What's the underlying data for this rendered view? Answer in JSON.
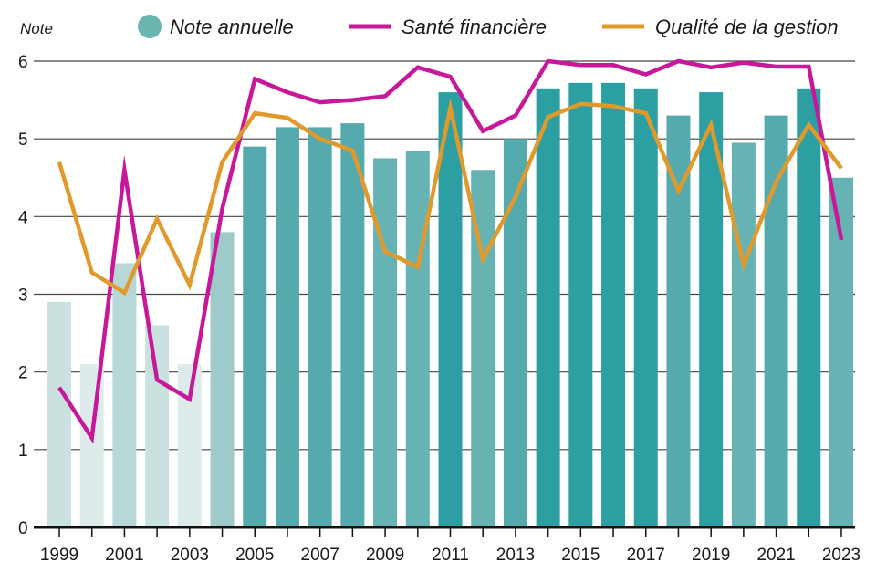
{
  "chart_data": {
    "type": "bar",
    "ylabel": "Note",
    "ylim": [
      0,
      6
    ],
    "yticks": [
      "0",
      "1",
      "2",
      "3",
      "4",
      "5",
      "6"
    ],
    "categories": [
      "1999",
      "2000",
      "2001",
      "2002",
      "2003",
      "2004",
      "2005",
      "2006",
      "2007",
      "2008",
      "2009",
      "2010",
      "2011",
      "2012",
      "2013",
      "2014",
      "2015",
      "2016",
      "2017",
      "2018",
      "2019",
      "2020",
      "2021",
      "2022",
      "2023"
    ],
    "xtick_labels": [
      "1999",
      "2001",
      "2003",
      "2005",
      "2007",
      "2009",
      "2011",
      "2013",
      "2015",
      "2017",
      "2019",
      "2021",
      "2023"
    ],
    "grid": true,
    "legend_position": "top",
    "series": [
      {
        "name": "Note annuelle",
        "kind": "bar",
        "color": "#3aa6a8",
        "values": [
          2.9,
          2.1,
          3.4,
          2.6,
          2.1,
          3.8,
          4.9,
          5.15,
          5.15,
          5.2,
          4.75,
          4.85,
          5.6,
          4.6,
          5.0,
          5.65,
          5.72,
          5.72,
          5.65,
          5.3,
          5.6,
          4.95,
          5.3,
          5.65,
          4.5
        ]
      },
      {
        "name": "Santé financière",
        "kind": "line",
        "color": "#c8189a",
        "values": [
          1.8,
          1.15,
          4.6,
          1.9,
          1.65,
          4.1,
          5.77,
          5.6,
          5.47,
          5.5,
          5.55,
          5.92,
          5.8,
          5.1,
          5.3,
          6.0,
          5.95,
          5.95,
          5.83,
          6.0,
          5.92,
          5.98,
          5.93,
          5.93,
          3.7
        ]
      },
      {
        "name": "Qualité de la gestion",
        "kind": "line",
        "color": "#e09a2c",
        "values": [
          4.7,
          3.28,
          3.02,
          3.97,
          3.12,
          4.7,
          5.33,
          5.27,
          5.0,
          4.85,
          3.55,
          3.35,
          5.4,
          3.45,
          4.25,
          5.28,
          5.45,
          5.42,
          5.33,
          4.33,
          5.18,
          3.38,
          4.45,
          5.18,
          4.62
        ]
      }
    ]
  }
}
